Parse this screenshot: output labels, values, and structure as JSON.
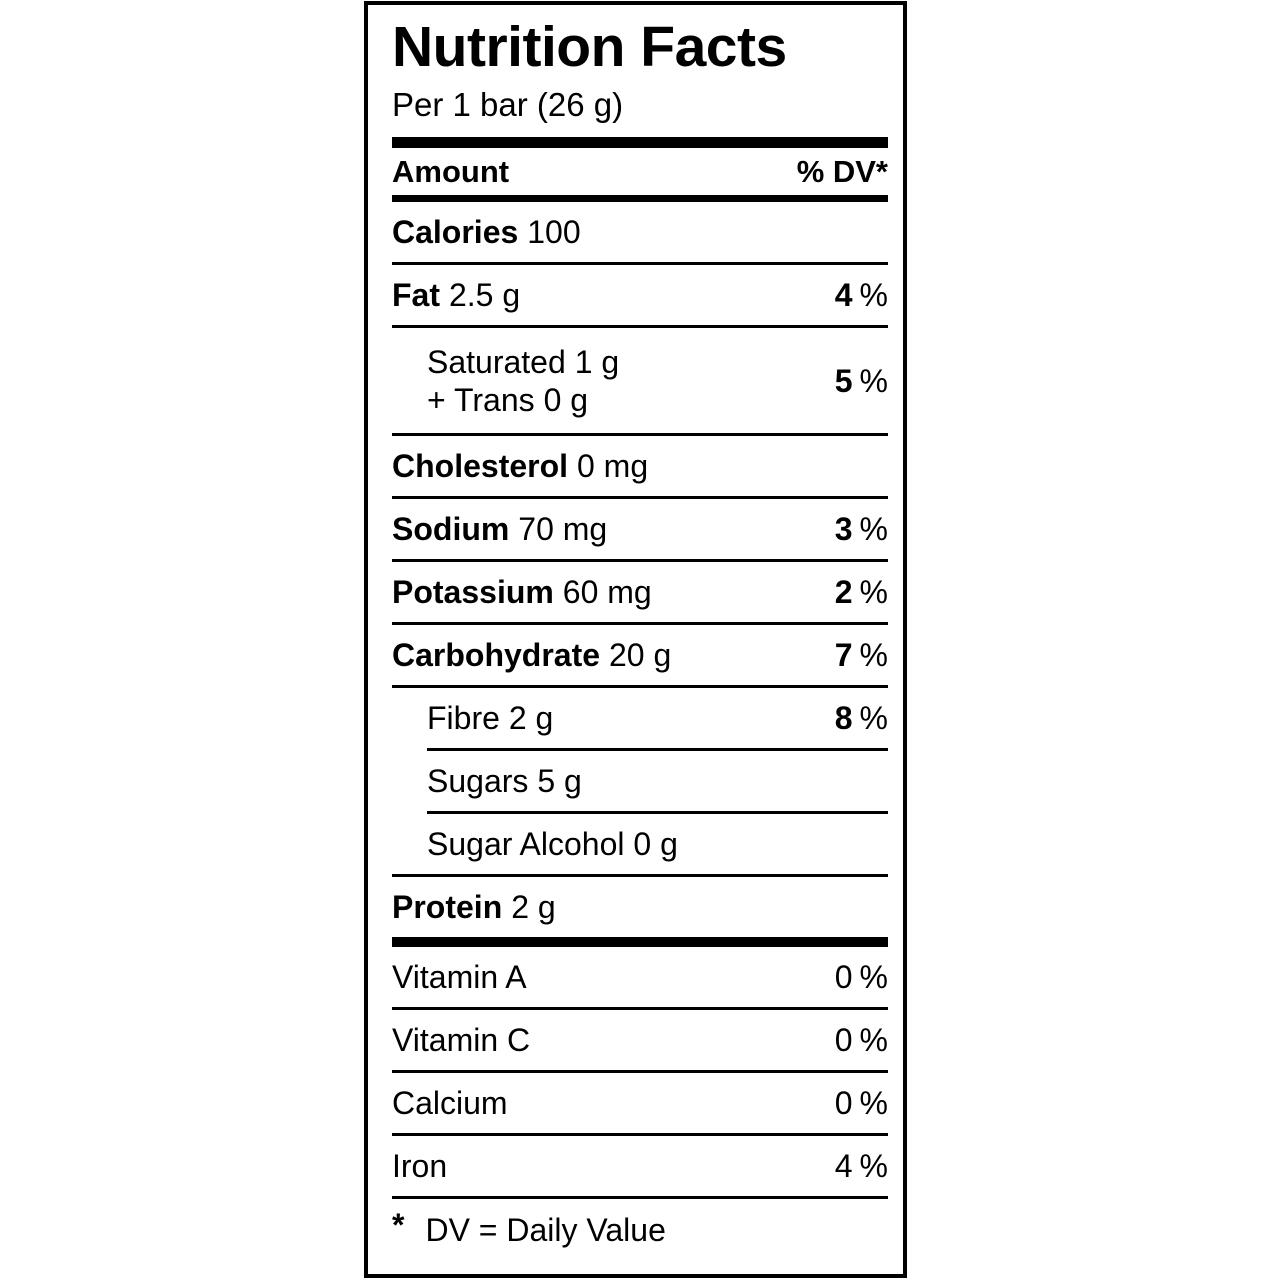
{
  "label": {
    "title": "Nutrition Facts",
    "serving": "Per 1 bar (26 g)",
    "columns": {
      "amount": "Amount",
      "dv": "% DV*"
    },
    "percent_sign": "%",
    "main_rows": [
      {
        "label": "Calories",
        "value": "100",
        "dv": null,
        "dv_bold": false,
        "bold": true,
        "indent": false,
        "sep": "none"
      },
      {
        "label": "Fat",
        "value": "2.5 g",
        "dv": "4",
        "dv_bold": true,
        "bold": true,
        "indent": false,
        "sep": "full"
      },
      {
        "label": "Saturated",
        "value": "1 g",
        "label2": "+ Trans",
        "value2": "0 g",
        "dv": "5",
        "dv_bold": true,
        "bold": false,
        "indent": true,
        "sep": "full"
      },
      {
        "label": "Cholesterol",
        "value": "0 mg",
        "dv": null,
        "dv_bold": false,
        "bold": true,
        "indent": false,
        "sep": "full"
      },
      {
        "label": "Sodium",
        "value": "70 mg",
        "dv": "3",
        "dv_bold": true,
        "bold": true,
        "indent": false,
        "sep": "full"
      },
      {
        "label": "Potassium",
        "value": "60 mg",
        "dv": "2",
        "dv_bold": true,
        "bold": true,
        "indent": false,
        "sep": "full"
      },
      {
        "label": "Carbohydrate",
        "value": "20 g",
        "dv": "7",
        "dv_bold": true,
        "bold": true,
        "indent": false,
        "sep": "full"
      },
      {
        "label": "Fibre",
        "value": "2 g",
        "dv": "8",
        "dv_bold": true,
        "bold": false,
        "indent": true,
        "sep": "full"
      },
      {
        "label": "Sugars",
        "value": "5 g",
        "dv": null,
        "dv_bold": false,
        "bold": false,
        "indent": true,
        "sep": "indent"
      },
      {
        "label": "Sugar Alcohol",
        "value": "0 g",
        "dv": null,
        "dv_bold": false,
        "bold": false,
        "indent": true,
        "sep": "indent"
      },
      {
        "label": "Protein",
        "value": "2 g",
        "dv": null,
        "dv_bold": false,
        "bold": true,
        "indent": false,
        "sep": "full"
      }
    ],
    "vitamin_rows": [
      {
        "label": "Vitamin A",
        "value": null,
        "dv": "0",
        "dv_bold": false,
        "bold": false,
        "indent": false,
        "sep": "none"
      },
      {
        "label": "Vitamin C",
        "value": null,
        "dv": "0",
        "dv_bold": false,
        "bold": false,
        "indent": false,
        "sep": "full"
      },
      {
        "label": "Calcium",
        "value": null,
        "dv": "0",
        "dv_bold": false,
        "bold": false,
        "indent": false,
        "sep": "full"
      },
      {
        "label": "Iron",
        "value": null,
        "dv": "4",
        "dv_bold": false,
        "bold": false,
        "indent": false,
        "sep": "full"
      }
    ],
    "footnote": {
      "symbol": "*",
      "text": "DV = Daily Value"
    },
    "colors": {
      "text": "#000000",
      "background": "#ffffff",
      "border": "#000000"
    }
  }
}
